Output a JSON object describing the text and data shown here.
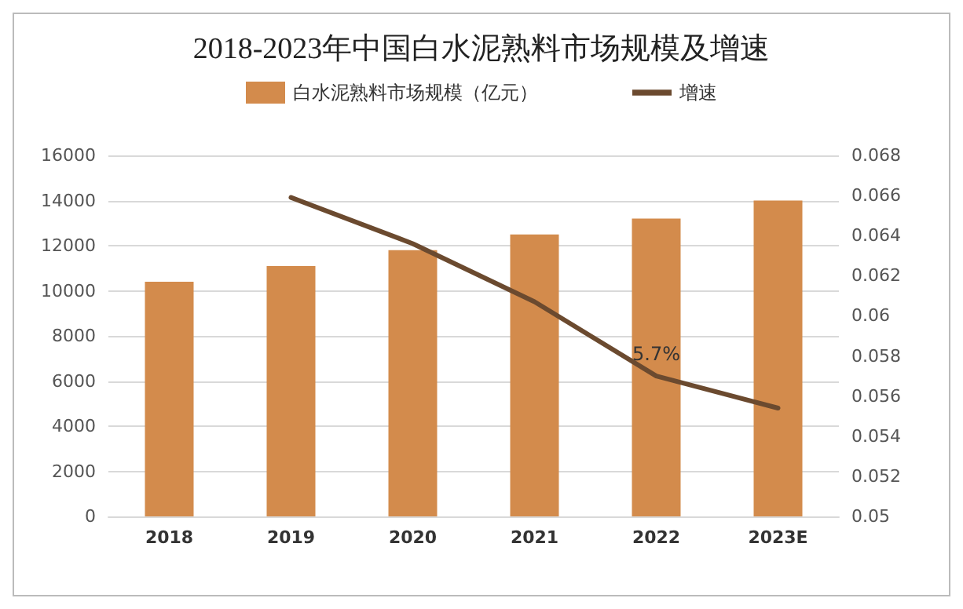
{
  "chart_data": {
    "type": "bar",
    "title": "2018-2023年中国白水泥熟料市场规模及增速",
    "categories": [
      "2018",
      "2019",
      "2020",
      "2021",
      "2022",
      "2023E"
    ],
    "series": [
      {
        "name": "白水泥熟料市场规模（亿元）",
        "color": "#d38b4c",
        "values": [
          10400,
          11100,
          11800,
          12500,
          13200,
          14000
        ]
      },
      {
        "name": "增速",
        "type": "line",
        "axis": "y2",
        "color": "#6b4a2f",
        "values": [
          null,
          0.0659,
          0.0636,
          0.0607,
          0.057,
          0.0554
        ],
        "value_labels": [
          null,
          null,
          null,
          null,
          "5.7%",
          null
        ]
      }
    ],
    "ylim": [
      0,
      16000
    ],
    "yticks": [
      0,
      2000,
      4000,
      6000,
      8000,
      10000,
      12000,
      14000,
      16000
    ],
    "y2lim": [
      0.05,
      0.068
    ],
    "y2ticks": [
      0.05,
      0.052,
      0.054,
      0.056,
      0.058,
      0.06,
      0.062,
      0.064,
      0.066,
      0.068
    ],
    "grid": "y",
    "legend": "top",
    "marker": "none",
    "line_style": "solid"
  }
}
